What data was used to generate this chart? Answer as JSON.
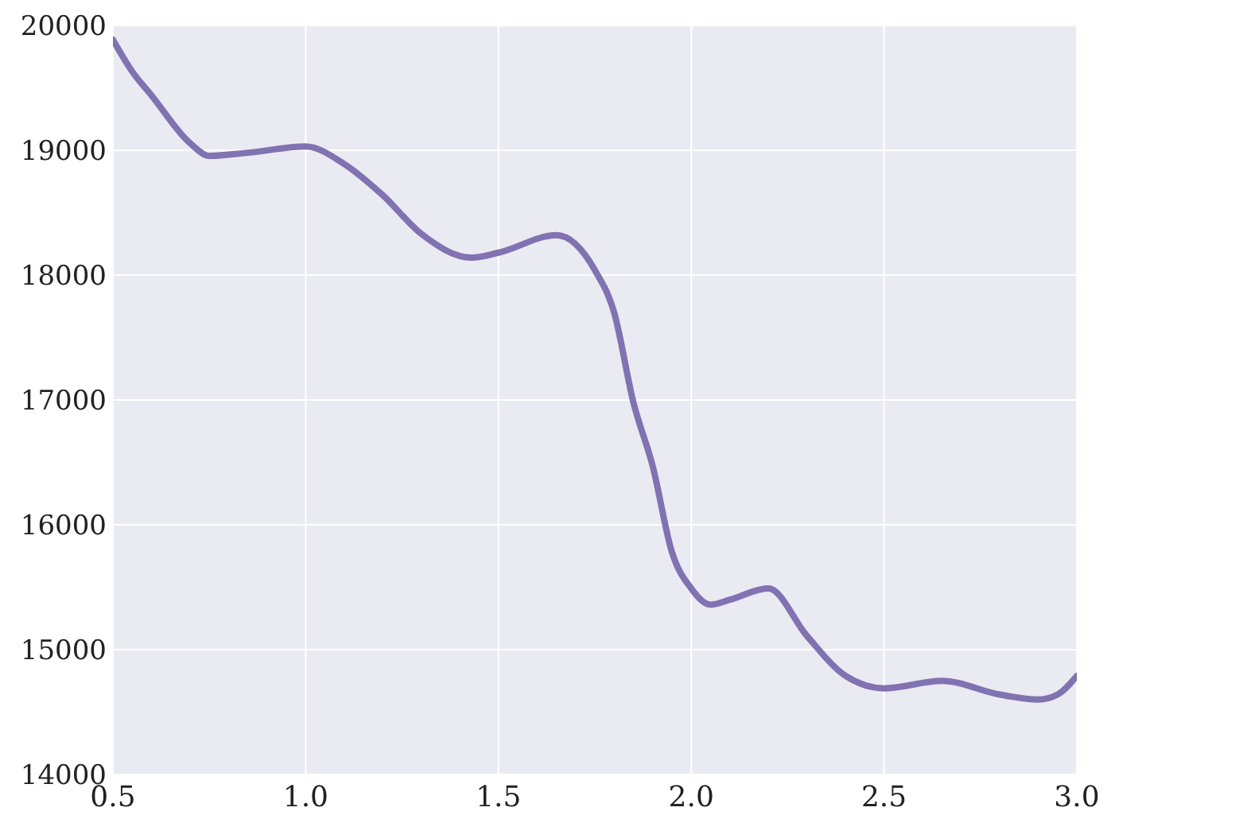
{
  "chart_data": {
    "type": "line",
    "x": [
      0.5,
      0.55,
      0.6,
      0.7,
      0.75,
      0.85,
      1.0,
      1.1,
      1.2,
      1.3,
      1.43,
      1.5,
      1.65,
      1.75,
      1.8,
      1.85,
      1.9,
      1.95,
      2.0,
      2.05,
      2.1,
      2.2,
      2.3,
      2.4,
      2.5,
      2.65,
      2.8,
      2.9,
      2.95,
      3.0
    ],
    "series": [
      {
        "color": "#8172b2",
        "values": [
          19885,
          19630,
          19440,
          19057,
          18955,
          18980,
          19030,
          18890,
          18640,
          18330,
          18140,
          18180,
          18320,
          18040,
          17700,
          16980,
          16470,
          15780,
          15490,
          15360,
          15400,
          15490,
          15110,
          14790,
          14690,
          14750,
          14640,
          14600,
          14640,
          14790
        ]
      }
    ],
    "xlim": [
      0.5,
      3.0
    ],
    "xticks": [
      {
        "value": 0.5,
        "label": "0.5"
      },
      {
        "value": 1.0,
        "label": "1.0"
      },
      {
        "value": 1.5,
        "label": "1.5"
      },
      {
        "value": 2.0,
        "label": "2.0"
      },
      {
        "value": 2.5,
        "label": "2.5"
      },
      {
        "value": 3.0,
        "label": "3.0"
      }
    ],
    "ylim": [
      14000,
      20000
    ],
    "yticks": [
      14000,
      15000,
      16000,
      17000,
      18000,
      19000,
      20000
    ],
    "grid": true
  }
}
